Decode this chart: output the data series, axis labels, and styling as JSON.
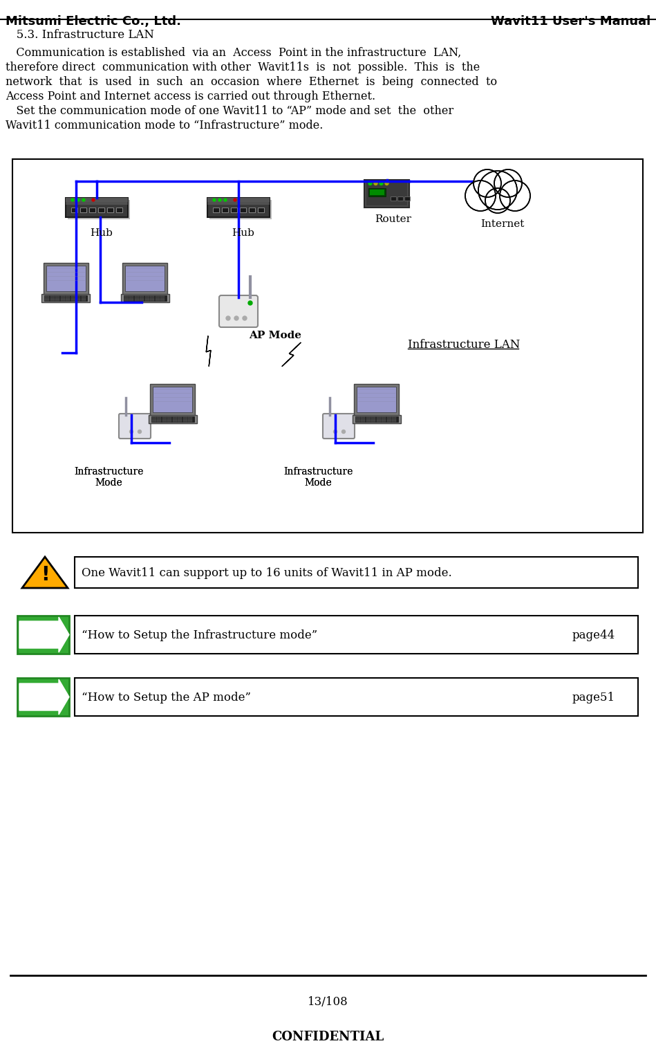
{
  "title_left": "Mitsumi Electric Co., Ltd.",
  "title_right": "Wavit11 User's Manual",
  "section_title": "   5.3. Infrastructure LAN",
  "body_text_lines": [
    "   Communication is established  via an  Access  Point in the infrastructure  LAN,",
    "therefore direct  communication with other  Wavit11s  is  not  possible.  This  is  the",
    "network  that  is  used  in  such  an  occasion  where  Ethernet  is  being  connected  to",
    "Access Point and Internet access is carried out through Ethernet.",
    "   Set the communication mode of one Wavit11 to “AP” mode and set  the  other",
    "Wavit11 communication mode to “Infrastructure” mode."
  ],
  "diagram_labels": {
    "hub1": "Hub",
    "hub2": "Hub",
    "router": "Router",
    "internet": "Internet",
    "ap_mode": "AP Mode",
    "infra_lan": "Infrastructure LAN",
    "infra_mode1": "Infrastructure\nMode",
    "infra_mode2": "Infrastructure\nMode"
  },
  "warning_text": "One Wavit11 can support up to 16 units of Wavit11 in AP mode.",
  "link1_text": "“How to Setup the Infrastructure mode”",
  "link1_page": "page44",
  "link2_text": "“How to Setup the AP mode”",
  "link2_page": "page51",
  "page_number": "13/108",
  "confidential": "CONFIDENTIAL",
  "bg_color": "#ffffff",
  "diagram_bg": "#ffffff",
  "diagram_border": "#000000",
  "blue_line": "#0000ff",
  "font_family": "DejaVu Sans"
}
